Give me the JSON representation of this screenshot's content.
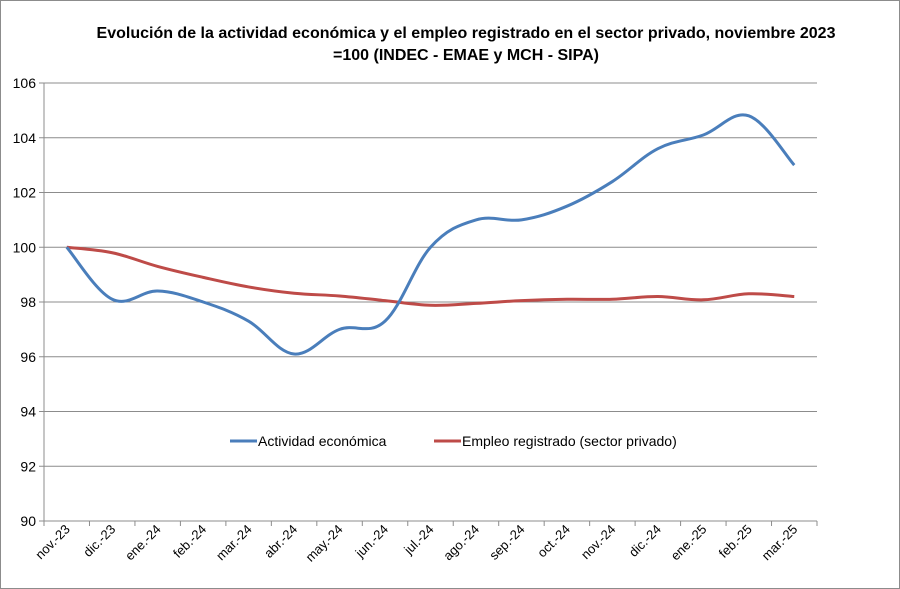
{
  "chart_data": {
    "type": "line",
    "title_line1": "Evolución de la actividad económica y el empleo registrado en el sector privado, noviembre 2023",
    "title_line2": "=100 (INDEC - EMAE y MCH - SIPA)",
    "xlabel": "",
    "ylabel": "",
    "ylim": [
      90,
      106
    ],
    "yticks": [
      90,
      92,
      94,
      96,
      98,
      100,
      102,
      104,
      106
    ],
    "grid": true,
    "legend_position": "inside-bottom-center",
    "categories": [
      "nov.-23",
      "dic.-23",
      "ene.-24",
      "feb.-24",
      "mar.-24",
      "abr.-24",
      "may.-24",
      "jun.-24",
      "jul.-24",
      "ago.-24",
      "sep.-24",
      "oct.-24",
      "nov.-24",
      "dic.-24",
      "ene.-25",
      "feb.-25",
      "mar.-25"
    ],
    "series": [
      {
        "name": "Actividad económica",
        "color": "#4a7ebb",
        "values": [
          100.0,
          98.1,
          98.4,
          98.0,
          97.3,
          96.1,
          97.0,
          97.3,
          100.0,
          101.0,
          101.0,
          101.5,
          102.4,
          103.6,
          104.1,
          104.8,
          103.0
        ]
      },
      {
        "name": "Empleo registrado (sector privado)",
        "color": "#be4b48",
        "values": [
          100.0,
          99.8,
          99.3,
          98.9,
          98.55,
          98.32,
          98.22,
          98.05,
          97.88,
          97.95,
          98.05,
          98.1,
          98.1,
          98.2,
          98.08,
          98.3,
          98.2
        ]
      }
    ]
  }
}
